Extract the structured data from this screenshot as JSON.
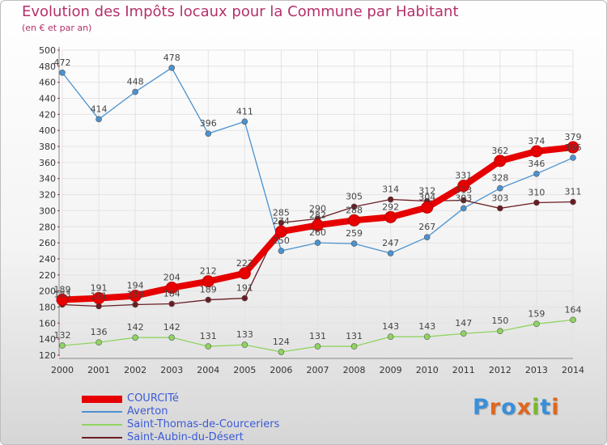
{
  "header": {
    "title": "Evolution des Impôts locaux pour la Commune par Habitant",
    "subtitle": "(en € et par an)"
  },
  "logo": {
    "letters": [
      "P",
      "r",
      "o",
      "x",
      "i",
      "t",
      "i"
    ],
    "colors": [
      "#3a8fd9",
      "#e0671e",
      "#3a8fd9",
      "#e0671e",
      "#7ab82e",
      "#3a8fd9",
      "#e0671e"
    ]
  },
  "colors": {
    "axis_text": "#333333",
    "grid": "#e3e3e3",
    "value_label": "#444444",
    "legend_text": "#3b5bd6"
  },
  "chart_data": {
    "type": "line",
    "x": [
      "2000",
      "2001",
      "2002",
      "2003",
      "2004",
      "2005",
      "2006",
      "2007",
      "2008",
      "2009",
      "2010",
      "2011",
      "2012",
      "2013",
      "2014"
    ],
    "ylim": [
      120,
      500
    ],
    "yticks": [
      120,
      140,
      160,
      180,
      200,
      220,
      240,
      260,
      280,
      300,
      320,
      340,
      360,
      380,
      400,
      420,
      440,
      460,
      480,
      500
    ],
    "grid": true,
    "legend_position": "bottom-left",
    "series": [
      {
        "name": "COURCITé",
        "color": "#e60000",
        "values": [
          189,
          191,
          194,
          204,
          212,
          222,
          274,
          282,
          288,
          292,
          304,
          331,
          362,
          374,
          379
        ]
      },
      {
        "name": "Averton",
        "color": "#4b92cf",
        "values": [
          472,
          414,
          448,
          478,
          396,
          411,
          250,
          260,
          259,
          247,
          267,
          303,
          328,
          346,
          366
        ]
      },
      {
        "name": "Saint-Thomas-de-Courceriers",
        "color": "#8fd45f",
        "values": [
          132,
          136,
          142,
          142,
          131,
          133,
          124,
          131,
          131,
          143,
          143,
          147,
          150,
          159,
          164
        ]
      },
      {
        "name": "Saint-Aubin-du-Désert",
        "color": "#6b1c22",
        "values": [
          183,
          181,
          183,
          184,
          189,
          191,
          285,
          290,
          305,
          314,
          312,
          313,
          303,
          310,
          311
        ]
      }
    ],
    "labels": [
      [
        "189",
        "191",
        "194",
        "204",
        "212",
        "222",
        "274",
        "282",
        "288",
        "292",
        "304",
        "331",
        "362",
        "374",
        "379"
      ],
      [
        "472",
        "414",
        "448",
        "478",
        "396",
        "411",
        "250",
        "260",
        "259",
        "247",
        "267",
        "303",
        "328",
        "346",
        "366"
      ],
      [
        "132",
        "136",
        "142",
        "142",
        "131",
        "133",
        "124",
        "131",
        "131",
        "143",
        "143",
        "147",
        "150",
        "159",
        "164"
      ],
      [
        "183",
        "181",
        "183",
        "184",
        "189",
        "191",
        "285",
        "290",
        "305",
        "314",
        "312",
        "313",
        "303",
        "310",
        "311"
      ]
    ]
  }
}
